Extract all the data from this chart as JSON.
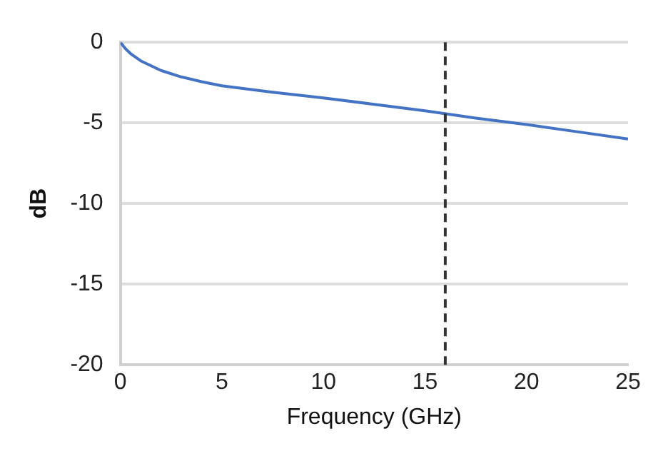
{
  "chart_data": {
    "type": "line",
    "xlabel": "Frequency (GHz)",
    "ylabel": "dB",
    "x": [
      0,
      0.25,
      0.5,
      1,
      2,
      3,
      4,
      5,
      7.5,
      10,
      12.5,
      15,
      17.5,
      20,
      22.5,
      25
    ],
    "series": [
      {
        "color": "#4472c4",
        "values": [
          0,
          -0.4,
          -0.7,
          -1.15,
          -1.75,
          -2.15,
          -2.45,
          -2.7,
          -3.1,
          -3.45,
          -3.85,
          -4.25,
          -4.7,
          -5.1,
          -5.55,
          -6.0
        ]
      }
    ],
    "xlim": [
      0,
      25
    ],
    "xticks": [
      0,
      5,
      10,
      15,
      20,
      25
    ],
    "ylim": [
      -20,
      0
    ],
    "yticks": [
      -20,
      -15,
      -10,
      -5,
      0
    ],
    "grid": "y",
    "marker": "none",
    "line_style": "solid",
    "ref_lines": [
      {
        "axis": "x",
        "value": 16,
        "color": "#333333",
        "line_style": "dashed"
      }
    ]
  }
}
